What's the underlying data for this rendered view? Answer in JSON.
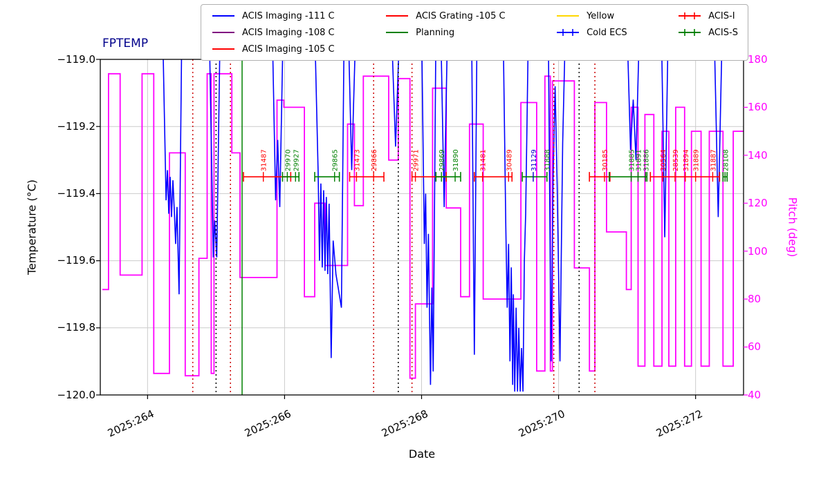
{
  "title": "FPTEMP",
  "axes": {
    "left_label": "Temperature (°C)",
    "right_label": "Pitch (deg)",
    "x_label": "Date",
    "left_ticks": [
      "−119.0",
      "−119.2",
      "−119.4",
      "−119.6",
      "−119.8",
      "−120.0"
    ],
    "right_ticks": [
      "180",
      "160",
      "140",
      "120",
      "100",
      "80",
      "60",
      "40"
    ],
    "x_ticks": [
      "2025:264",
      "2025:266",
      "2025:268",
      "2025:270",
      "2025:272"
    ]
  },
  "legend": {
    "columns": [
      [
        {
          "label": "ACIS Imaging -111 C",
          "color": "#0000ff",
          "marker": false
        },
        {
          "label": "ACIS Imaging -108 C",
          "color": "#800080",
          "marker": false
        },
        {
          "label": "ACIS Imaging -105 C",
          "color": "#ff0000",
          "marker": false
        }
      ],
      [
        {
          "label": "ACIS Grating -105 C",
          "color": "#ff0000",
          "marker": false
        },
        {
          "label": "Planning",
          "color": "#008000",
          "marker": false
        }
      ],
      [
        {
          "label": "Yellow",
          "color": "#ffd700",
          "marker": false
        },
        {
          "label": "Cold ECS",
          "color": "#0000ff",
          "marker": true
        }
      ],
      [
        {
          "label": "ACIS-I",
          "color": "#ff0000",
          "marker": true
        },
        {
          "label": "ACIS-S",
          "color": "#008000",
          "marker": true
        }
      ]
    ]
  },
  "colors": {
    "title": "#00008b",
    "temp_line": "#0000ff",
    "pitch_line": "#ff00ff",
    "acis_i": "#ff0000",
    "acis_s": "#008000",
    "cold_ecs": "#0000cc",
    "grid": "#cccccc",
    "yellow": "#ffd700",
    "purple": "#800080"
  },
  "chart_data": {
    "type": "line",
    "title": "FPTEMP",
    "xlabel": "Date",
    "ylabel_left": "Temperature (°C)",
    "ylabel_right": "Pitch (deg)",
    "x_range": [
      263.31,
      272.7
    ],
    "y_left_range": [
      -120.0,
      -119.0
    ],
    "y_right_range": [
      40,
      180
    ],
    "x_tick_values": [
      264,
      266,
      268,
      270,
      272
    ],
    "y_left_tick_values": [
      -119.0,
      -119.2,
      -119.4,
      -119.6,
      -119.8,
      -120.0
    ],
    "y_right_tick_values": [
      180,
      160,
      140,
      120,
      100,
      80,
      60,
      40
    ],
    "grid": true,
    "command_y": -119.35,
    "pitch_steps": [
      [
        263.34,
        263.43,
        84
      ],
      [
        263.43,
        263.6,
        174
      ],
      [
        263.6,
        263.92,
        90
      ],
      [
        263.92,
        264.09,
        174
      ],
      [
        264.09,
        264.32,
        49
      ],
      [
        264.32,
        264.55,
        141
      ],
      [
        264.55,
        264.75,
        48
      ],
      [
        264.75,
        264.87,
        97
      ],
      [
        264.87,
        264.93,
        174
      ],
      [
        264.93,
        264.97,
        49
      ],
      [
        264.97,
        265.23,
        174
      ],
      [
        265.23,
        265.35,
        141
      ],
      [
        265.35,
        265.89,
        89
      ],
      [
        265.89,
        265.99,
        163
      ],
      [
        265.99,
        266.29,
        160
      ],
      [
        266.29,
        266.44,
        81
      ],
      [
        266.44,
        266.59,
        120
      ],
      [
        266.59,
        266.92,
        94
      ],
      [
        266.92,
        267.02,
        153
      ],
      [
        267.02,
        267.15,
        119
      ],
      [
        267.15,
        267.52,
        173
      ],
      [
        267.52,
        267.66,
        138
      ],
      [
        267.66,
        267.83,
        172
      ],
      [
        267.83,
        267.91,
        47
      ],
      [
        267.91,
        268.16,
        78
      ],
      [
        268.16,
        268.36,
        168
      ],
      [
        268.36,
        268.57,
        118
      ],
      [
        268.57,
        268.7,
        81
      ],
      [
        268.7,
        268.9,
        153
      ],
      [
        268.9,
        269.45,
        80
      ],
      [
        269.45,
        269.68,
        162
      ],
      [
        269.68,
        269.8,
        50
      ],
      [
        269.8,
        269.88,
        173
      ],
      [
        269.88,
        269.91,
        50
      ],
      [
        269.91,
        270.23,
        171
      ],
      [
        270.23,
        270.45,
        93
      ],
      [
        270.45,
        270.53,
        50
      ],
      [
        270.53,
        270.7,
        162
      ],
      [
        270.7,
        270.99,
        108
      ],
      [
        270.99,
        271.06,
        84
      ],
      [
        271.06,
        271.16,
        160
      ],
      [
        271.16,
        271.26,
        52
      ],
      [
        271.26,
        271.39,
        157
      ],
      [
        271.39,
        271.51,
        52
      ],
      [
        271.51,
        271.61,
        150
      ],
      [
        271.61,
        271.71,
        52
      ],
      [
        271.71,
        271.84,
        160
      ],
      [
        271.84,
        271.94,
        52
      ],
      [
        271.94,
        272.08,
        150
      ],
      [
        272.08,
        272.2,
        52
      ],
      [
        272.2,
        272.4,
        150
      ],
      [
        272.4,
        272.55,
        52
      ],
      [
        272.55,
        272.7,
        150
      ]
    ],
    "temp_segments": [
      [
        [
          264.22,
          -118.9
        ],
        [
          264.27,
          -119.42
        ],
        [
          264.29,
          -119.33
        ],
        [
          264.31,
          -119.46
        ],
        [
          264.33,
          -119.35
        ],
        [
          264.35,
          -119.47
        ],
        [
          264.37,
          -119.36
        ],
        [
          264.39,
          -119.45
        ],
        [
          264.41,
          -119.55
        ],
        [
          264.43,
          -119.44
        ],
        [
          264.46,
          -119.7
        ],
        [
          264.5,
          -118.9
        ]
      ],
      [
        [
          264.9,
          -118.9
        ],
        [
          264.96,
          -119.59
        ],
        [
          264.98,
          -119.48
        ],
        [
          265.01,
          -119.59
        ],
        [
          265.06,
          -118.9
        ]
      ],
      [
        [
          265.82,
          -118.9
        ],
        [
          265.87,
          -119.42
        ],
        [
          265.9,
          -119.24
        ],
        [
          265.93,
          -119.44
        ],
        [
          265.98,
          -118.9
        ]
      ],
      [
        [
          266.44,
          -118.9
        ],
        [
          266.49,
          -119.34
        ],
        [
          266.51,
          -119.6
        ],
        [
          266.53,
          -119.37
        ],
        [
          266.55,
          -119.62
        ],
        [
          266.57,
          -119.39
        ],
        [
          266.59,
          -119.63
        ],
        [
          266.61,
          -119.41
        ],
        [
          266.63,
          -119.64
        ],
        [
          266.65,
          -119.43
        ],
        [
          266.68,
          -119.89
        ],
        [
          266.71,
          -119.54
        ],
        [
          266.75,
          -119.64
        ],
        [
          266.79,
          -119.69
        ],
        [
          266.83,
          -119.74
        ],
        [
          266.87,
          -118.9
        ]
      ],
      [
        [
          266.93,
          -118.9
        ],
        [
          266.98,
          -119.33
        ],
        [
          267.04,
          -118.9
        ]
      ],
      [
        [
          267.56,
          -118.9
        ],
        [
          267.62,
          -119.26
        ],
        [
          267.68,
          -118.9
        ]
      ],
      [
        [
          268.0,
          -118.9
        ],
        [
          268.04,
          -119.55
        ],
        [
          268.06,
          -119.4
        ],
        [
          268.08,
          -119.74
        ],
        [
          268.1,
          -119.52
        ],
        [
          268.13,
          -119.97
        ],
        [
          268.15,
          -119.68
        ],
        [
          268.17,
          -119.93
        ],
        [
          268.21,
          -118.9
        ]
      ],
      [
        [
          268.28,
          -118.9
        ],
        [
          268.33,
          -119.44
        ],
        [
          268.38,
          -118.9
        ]
      ],
      [
        [
          268.73,
          -118.9
        ],
        [
          268.77,
          -119.88
        ],
        [
          268.81,
          -118.9
        ]
      ],
      [
        [
          269.19,
          -118.9
        ],
        [
          269.23,
          -119.5
        ],
        [
          269.25,
          -119.74
        ],
        [
          269.27,
          -119.55
        ],
        [
          269.29,
          -119.9
        ],
        [
          269.31,
          -119.62
        ],
        [
          269.33,
          -119.97
        ],
        [
          269.34,
          -119.7
        ],
        [
          269.36,
          -119.99
        ],
        [
          269.38,
          -119.74
        ],
        [
          269.4,
          -119.99
        ],
        [
          269.42,
          -119.8
        ],
        [
          269.44,
          -119.99
        ],
        [
          269.46,
          -119.86
        ],
        [
          269.48,
          -119.99
        ],
        [
          269.5,
          -119.6
        ],
        [
          269.52,
          -119.46
        ],
        [
          269.56,
          -118.9
        ]
      ],
      [
        [
          269.85,
          -118.9
        ],
        [
          269.89,
          -119.9
        ],
        [
          269.92,
          -119.35
        ],
        [
          269.95,
          -119.08
        ],
        [
          269.98,
          -119.38
        ],
        [
          270.02,
          -119.9
        ],
        [
          270.06,
          -119.25
        ],
        [
          270.1,
          -118.9
        ]
      ],
      [
        [
          271.0,
          -118.9
        ],
        [
          271.05,
          -119.27
        ],
        [
          271.09,
          -119.12
        ],
        [
          271.13,
          -119.3
        ],
        [
          271.18,
          -118.9
        ]
      ],
      [
        [
          271.5,
          -118.9
        ],
        [
          271.55,
          -119.53
        ],
        [
          271.6,
          -118.9
        ]
      ],
      [
        [
          272.27,
          -118.9
        ],
        [
          272.33,
          -119.47
        ],
        [
          272.39,
          -118.9
        ]
      ]
    ],
    "command_segments": [
      {
        "x0": 265.4,
        "x1": 266.09,
        "color": "red"
      },
      {
        "x0": 265.97,
        "x1": 266.21,
        "color": "green"
      },
      {
        "x0": 266.44,
        "x1": 266.8,
        "color": "green"
      },
      {
        "x0": 266.95,
        "x1": 267.45,
        "color": "red"
      },
      {
        "x0": 267.86,
        "x1": 268.36,
        "color": "red"
      },
      {
        "x0": 268.21,
        "x1": 268.57,
        "color": "green"
      },
      {
        "x0": 268.77,
        "x1": 269.32,
        "color": "red"
      },
      {
        "x0": 269.47,
        "x1": 269.83,
        "color": "green"
      },
      {
        "x0": 270.45,
        "x1": 270.75,
        "color": "red"
      },
      {
        "x0": 270.74,
        "x1": 271.29,
        "color": "green"
      },
      {
        "x0": 271.34,
        "x1": 272.35,
        "color": "red"
      },
      {
        "x0": 272.4,
        "x1": 272.46,
        "color": "green"
      }
    ],
    "obsids": [
      {
        "id": "31487",
        "day": 265.69,
        "color": "red"
      },
      {
        "id": "29970",
        "day": 266.04,
        "color": "green"
      },
      {
        "id": "29927",
        "day": 266.16,
        "color": "green"
      },
      {
        "id": "29865",
        "day": 266.73,
        "color": "green"
      },
      {
        "id": "31473",
        "day": 267.05,
        "color": "red"
      },
      {
        "id": "29866",
        "day": 267.3,
        "color": "red"
      },
      {
        "id": "29971",
        "day": 267.91,
        "color": "red"
      },
      {
        "id": "29869",
        "day": 268.29,
        "color": "green"
      },
      {
        "id": "31890",
        "day": 268.49,
        "color": "green"
      },
      {
        "id": "31481",
        "day": 268.89,
        "color": "red"
      },
      {
        "id": "30489",
        "day": 269.27,
        "color": "red"
      },
      {
        "id": "31129",
        "day": 269.63,
        "color": "blue"
      },
      {
        "id": "31888",
        "day": 269.83,
        "color": "green"
      },
      {
        "id": "30185",
        "day": 270.67,
        "color": "red"
      },
      {
        "id": "31885",
        "day": 271.06,
        "color": "green"
      },
      {
        "id": "31891",
        "day": 271.16,
        "color": "green"
      },
      {
        "id": "31886",
        "day": 271.27,
        "color": "green"
      },
      {
        "id": "30564",
        "day": 271.52,
        "color": "red"
      },
      {
        "id": "28539",
        "day": 271.7,
        "color": "red"
      },
      {
        "id": "31894",
        "day": 271.85,
        "color": "red"
      },
      {
        "id": "31889",
        "day": 272.0,
        "color": "red"
      },
      {
        "id": "31887",
        "day": 272.25,
        "color": "red"
      },
      {
        "id": "28108",
        "day": 272.43,
        "color": "green"
      }
    ],
    "vlines": [
      {
        "day": 264.66,
        "color": "#cc0000",
        "style": "dotted"
      },
      {
        "day": 265.0,
        "color": "#000000",
        "style": "dotted"
      },
      {
        "day": 265.21,
        "color": "#cc0000",
        "style": "dotted"
      },
      {
        "day": 265.38,
        "color": "#008000",
        "style": "solid"
      },
      {
        "day": 267.3,
        "color": "#cc0000",
        "style": "dotted"
      },
      {
        "day": 267.66,
        "color": "#000000",
        "style": "dotted"
      },
      {
        "day": 267.86,
        "color": "#cc0000",
        "style": "dotted"
      },
      {
        "day": 269.93,
        "color": "#cc0000",
        "style": "dotted"
      },
      {
        "day": 270.3,
        "color": "#000000",
        "style": "dotted"
      },
      {
        "day": 270.53,
        "color": "#cc0000",
        "style": "dotted"
      }
    ]
  }
}
